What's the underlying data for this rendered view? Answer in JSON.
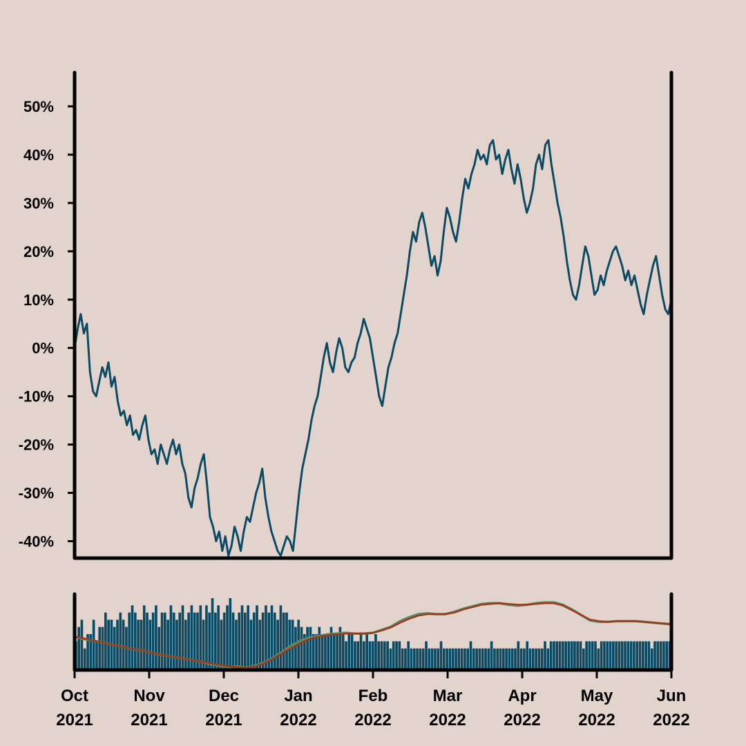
{
  "colors": {
    "background": "#e2d3cd",
    "price_line": "#0b4a63",
    "volume_bars": "#0b4a63",
    "ma_short": "#5a8a66",
    "ma_long": "#9a3a1a",
    "axis": "#000000"
  },
  "chart_data": {
    "type": "line",
    "price_panel": {
      "series": [
        {
          "values_pct": [
            0,
            4,
            7,
            3,
            5,
            -5,
            -9,
            -10,
            -7,
            -4,
            -6,
            -3,
            -8,
            -6,
            -11,
            -14,
            -13,
            -16,
            -14,
            -18,
            -17,
            -19,
            -16,
            -14,
            -19,
            -22,
            -21,
            -24,
            -20,
            -22,
            -24,
            -21,
            -19,
            -22,
            -20,
            -24,
            -26,
            -31,
            -33,
            -29,
            -27,
            -24,
            -22,
            -28,
            -35,
            -37,
            -40,
            -38,
            -42,
            -39,
            -43,
            -41,
            -37,
            -39,
            -42,
            -38,
            -35,
            -36,
            -33,
            -30,
            -28,
            -25,
            -31,
            -35,
            -38,
            -40,
            -42,
            -43,
            -41,
            -39,
            -40,
            -42,
            -36,
            -30,
            -25,
            -22,
            -19,
            -15,
            -12,
            -10,
            -6,
            -2,
            1,
            -3,
            -5,
            -1,
            2,
            0,
            -4,
            -5,
            -3,
            -2,
            1,
            3,
            6,
            4,
            2,
            -2,
            -6,
            -10,
            -12,
            -8,
            -4,
            -2,
            1,
            3,
            7,
            11,
            15,
            20,
            24,
            22,
            26,
            28,
            25,
            21,
            17,
            19,
            15,
            18,
            24,
            29,
            27,
            24,
            22,
            26,
            31,
            35,
            33,
            36,
            38,
            41,
            39,
            40,
            38,
            42,
            43,
            39,
            40,
            36,
            39,
            41,
            37,
            34,
            38,
            35,
            31,
            28,
            30,
            33,
            38,
            40,
            37,
            42,
            43,
            38,
            34,
            30,
            27,
            23,
            18,
            14,
            11,
            10,
            13,
            17,
            21,
            19,
            15,
            11,
            12,
            15,
            13,
            16,
            18,
            20,
            21,
            19,
            17,
            14,
            16,
            13,
            15,
            12,
            9,
            7,
            11,
            14,
            17,
            19,
            15,
            11,
            8,
            7,
            10
          ]
        }
      ],
      "y_ticks": [
        "50%",
        "40%",
        "30%",
        "20%",
        "10%",
        "0%",
        "-10%",
        "-20%",
        "-30%",
        "-40%"
      ],
      "y_tick_values": [
        50,
        40,
        30,
        20,
        10,
        0,
        -10,
        -20,
        -30,
        -40
      ],
      "ylim": [
        -43.5,
        57
      ],
      "grid": false
    },
    "volume_panel": {
      "volumes": [
        4,
        6,
        7,
        3,
        5,
        5,
        7,
        4,
        6,
        6,
        8,
        7,
        7,
        6,
        7,
        8,
        7,
        6,
        8,
        9,
        8,
        7,
        7,
        9,
        8,
        7,
        8,
        9,
        6,
        8,
        8,
        7,
        9,
        8,
        7,
        8,
        9,
        7,
        8,
        9,
        8,
        8,
        9,
        7,
        9,
        8,
        10,
        8,
        9,
        7,
        8,
        9,
        10,
        8,
        7,
        8,
        9,
        8,
        9,
        7,
        8,
        9,
        7,
        8,
        9,
        8,
        9,
        8,
        7,
        9,
        8,
        8,
        7,
        7,
        6,
        7,
        6,
        5,
        6,
        6,
        5,
        5,
        6,
        5,
        5,
        5,
        6,
        5,
        5,
        6,
        5,
        4,
        5,
        5,
        4,
        4,
        5,
        4,
        5,
        4,
        4,
        5,
        4,
        4,
        4,
        4,
        3,
        4,
        4,
        4,
        3,
        3,
        4,
        3,
        3,
        3,
        3,
        3,
        4,
        3,
        3,
        3,
        3,
        4,
        3,
        3,
        3,
        3,
        3,
        3,
        3,
        3,
        3,
        4,
        3,
        3,
        3,
        3,
        3,
        3,
        4,
        3,
        3,
        3,
        3,
        3,
        3,
        3,
        3,
        4,
        3,
        3,
        4,
        3,
        3,
        3,
        3,
        3,
        4,
        3,
        4,
        4,
        4,
        4,
        4,
        4,
        4,
        4,
        4,
        4,
        4,
        3,
        4,
        4,
        4,
        4,
        3,
        4,
        4,
        4,
        4,
        4,
        4,
        4,
        4,
        4,
        4,
        4,
        4,
        4,
        4,
        4,
        4,
        4,
        3,
        4,
        4,
        4,
        4,
        4,
        4
      ],
      "moving_averages": [
        {
          "color_key": "ma_short",
          "values_pct": [
            -3,
            -6,
            -8,
            -10,
            -13,
            -15,
            -18,
            -20,
            -22,
            -25,
            -27,
            -29,
            -31,
            -33,
            -35,
            -38,
            -40,
            -42,
            -41,
            -43,
            -40,
            -36,
            -30,
            -22,
            -14,
            -8,
            -4,
            -2,
            0,
            1,
            2,
            1,
            1,
            2,
            6,
            10,
            17,
            22,
            26,
            27,
            26,
            26,
            29,
            33,
            36,
            39,
            40,
            40,
            38,
            37,
            38,
            40,
            41,
            41,
            38,
            32,
            25,
            18,
            16,
            16,
            17,
            17,
            17,
            16,
            15,
            14,
            13
          ]
        },
        {
          "color_key": "ma_long",
          "values_pct": [
            -3,
            -5,
            -8,
            -10,
            -13,
            -15,
            -18,
            -20,
            -22,
            -25,
            -27,
            -29,
            -31,
            -33,
            -35,
            -37,
            -39,
            -41,
            -42,
            -43,
            -41,
            -37,
            -31,
            -24,
            -17,
            -11,
            -6,
            -3,
            -1,
            0,
            1,
            1,
            1,
            2,
            5,
            9,
            15,
            20,
            24,
            26,
            26,
            26,
            28,
            32,
            35,
            38,
            39,
            40,
            39,
            38,
            38,
            39,
            40,
            40,
            37,
            31,
            25,
            19,
            17,
            16,
            17,
            17,
            17,
            16,
            15,
            14,
            13
          ]
        }
      ],
      "ma_ylim": [
        -44,
        50
      ]
    },
    "x_axis": {
      "tick_labels": [
        {
          "month": "Oct",
          "year": "2021"
        },
        {
          "month": "Nov",
          "year": "2021"
        },
        {
          "month": "Dec",
          "year": "2021"
        },
        {
          "month": "Jan",
          "year": "2022"
        },
        {
          "month": "Feb",
          "year": "2022"
        },
        {
          "month": "Mar",
          "year": "2022"
        },
        {
          "month": "Apr",
          "year": "2022"
        },
        {
          "month": "May",
          "year": "2022"
        },
        {
          "month": "Jun",
          "year": "2022"
        }
      ],
      "range": [
        "2021-10-01",
        "2022-06-01"
      ]
    },
    "title": "",
    "xlabel": "",
    "ylabel": ""
  }
}
